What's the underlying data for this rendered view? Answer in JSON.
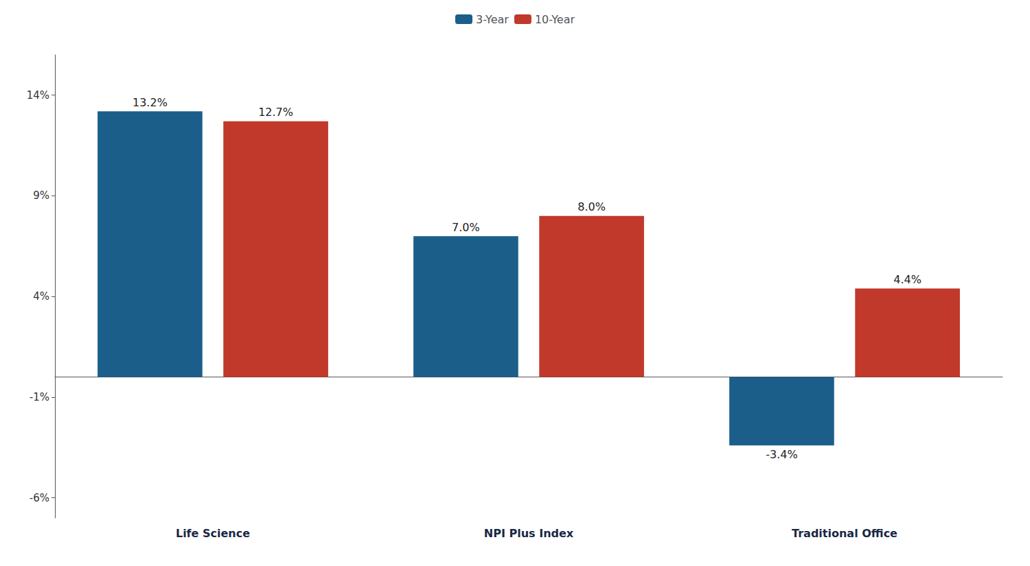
{
  "chart_data": {
    "type": "bar",
    "categories": [
      "Life Science",
      "NPI Plus Index",
      "Traditional Office"
    ],
    "series": [
      {
        "name": "3-Year",
        "color": "#1B5E8A",
        "values": [
          13.2,
          7.0,
          -3.4
        ],
        "value_labels": [
          "13.2%",
          "7.0%",
          "-3.4%"
        ]
      },
      {
        "name": "10-Year",
        "color": "#C0392B",
        "values": [
          12.7,
          8.0,
          4.4
        ],
        "value_labels": [
          "12.7%",
          "8.0%",
          "4.4%"
        ]
      }
    ],
    "ylim": [
      -7.0,
      16.0
    ],
    "yticks": [
      {
        "value": -6,
        "label": "-6%"
      },
      {
        "value": -1,
        "label": "-1%"
      },
      {
        "value": 4,
        "label": "4%"
      },
      {
        "value": 9,
        "label": "9%"
      },
      {
        "value": 14,
        "label": "14%"
      }
    ],
    "grid": false,
    "legend": "top",
    "data_labels": true
  }
}
